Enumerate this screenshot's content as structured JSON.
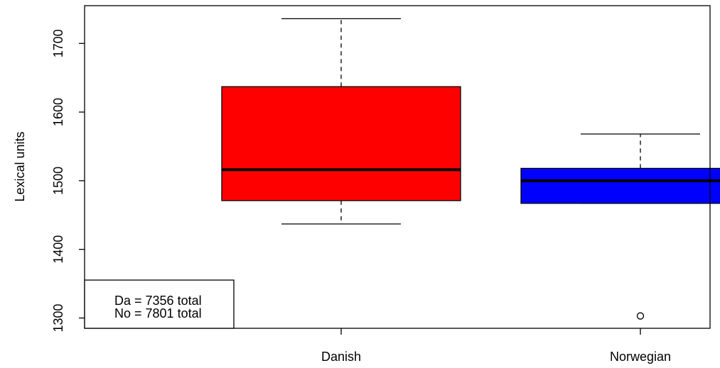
{
  "chart_data": {
    "type": "boxplot",
    "ylabel": "Lexical units",
    "ylim": [
      1285,
      1755
    ],
    "yticks": [
      1300,
      1400,
      1500,
      1600,
      1700
    ],
    "categories": [
      "Danish",
      "Norwegian"
    ],
    "boxes": [
      {
        "category": "Danish",
        "color": "#ff0000",
        "whisker_low": 1437,
        "q1": 1471,
        "median": 1516,
        "q3": 1637,
        "whisker_high": 1736,
        "outliers": []
      },
      {
        "category": "Norwegian",
        "color": "#0000ff",
        "whisker_low": 1467,
        "q1": 1467,
        "median": 1500,
        "q3": 1518,
        "whisker_high": 1568,
        "outliers": [
          1303
        ]
      }
    ],
    "legend": {
      "position": "bottom-left",
      "lines": [
        "Da = 7356 total",
        "No = 7801 total"
      ]
    }
  }
}
